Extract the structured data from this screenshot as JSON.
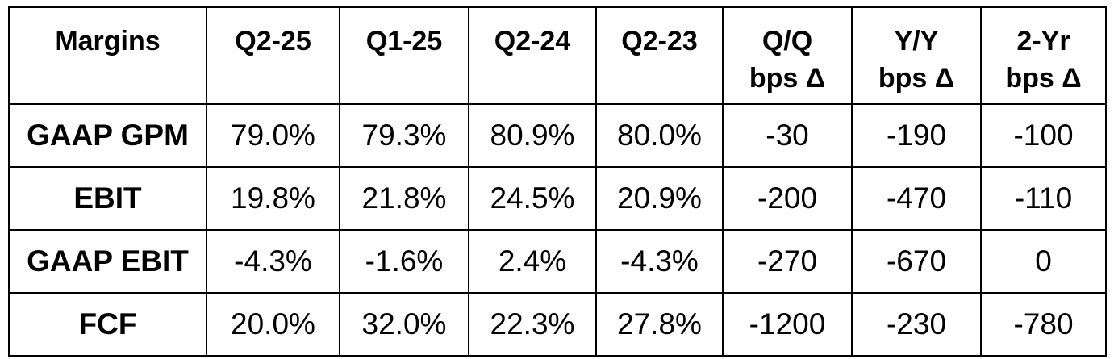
{
  "table": {
    "header": [
      "Margins",
      "Q2-25",
      "Q1-25",
      "Q2-24",
      "Q2-23",
      "Q/Q\nbps Δ",
      "Y/Y\nbps Δ",
      "2-Yr\nbps Δ"
    ],
    "rows": [
      [
        "GAAP GPM",
        "79.0%",
        "79.3%",
        "80.9%",
        "80.0%",
        "-30",
        "-190",
        "-100"
      ],
      [
        "EBIT",
        "19.8%",
        "21.8%",
        "24.5%",
        "20.9%",
        "-200",
        "-470",
        "-110"
      ],
      [
        "GAAP EBIT",
        "-4.3%",
        "-1.6%",
        "2.4%",
        "-4.3%",
        "-270",
        "-670",
        "0"
      ],
      [
        "FCF",
        "20.0%",
        "32.0%",
        "22.3%",
        "27.8%",
        "-1200",
        "-230",
        "-780"
      ]
    ]
  }
}
